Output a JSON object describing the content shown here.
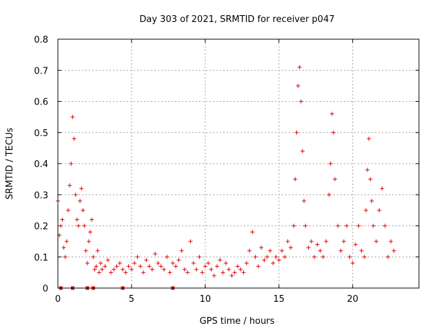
{
  "chart_data": {
    "type": "scatter",
    "title": "Day 303 of 2021, SRMTID for receiver p047",
    "xlabel": "GPS time / hours",
    "ylabel": "SRMTID / TECUs",
    "xlim": [
      0,
      24.5
    ],
    "ylim": [
      0,
      0.8
    ],
    "xticks": [
      0,
      5,
      10,
      15,
      20
    ],
    "xtick_labels": [
      "0",
      "5",
      "10",
      "15",
      "20"
    ],
    "yticks": [
      0,
      0.1,
      0.2,
      0.3,
      0.4,
      0.5,
      0.6,
      0.7,
      0.8
    ],
    "ytick_labels": [
      "0",
      "0.1",
      "0.2",
      "0.3",
      "0.4",
      "0.5",
      "0.6",
      "0.7",
      "0.8"
    ],
    "grid": true,
    "marker": "+",
    "color": "#e00000",
    "gap_markers_x": [
      0.2,
      1.0,
      2.0,
      2.4,
      4.4,
      7.8
    ],
    "series": [
      {
        "name": "SRMTID",
        "x": [
          0.0,
          0.1,
          0.2,
          0.3,
          0.4,
          0.5,
          0.6,
          0.7,
          0.8,
          0.9,
          1.0,
          1.1,
          1.2,
          1.3,
          1.4,
          1.5,
          1.6,
          1.7,
          1.8,
          1.9,
          2.0,
          2.1,
          2.2,
          2.3,
          2.4,
          2.5,
          2.6,
          2.7,
          2.8,
          2.9,
          3.0,
          3.2,
          3.4,
          3.6,
          3.8,
          4.0,
          4.2,
          4.4,
          4.6,
          4.8,
          5.0,
          5.2,
          5.4,
          5.6,
          5.8,
          6.0,
          6.2,
          6.4,
          6.6,
          6.8,
          7.0,
          7.2,
          7.4,
          7.6,
          7.8,
          8.0,
          8.2,
          8.4,
          8.6,
          8.8,
          9.0,
          9.2,
          9.4,
          9.6,
          9.8,
          10.0,
          10.2,
          10.4,
          10.6,
          10.8,
          11.0,
          11.2,
          11.4,
          11.6,
          11.8,
          12.0,
          12.2,
          12.4,
          12.6,
          12.8,
          13.0,
          13.2,
          13.4,
          13.6,
          13.8,
          14.0,
          14.2,
          14.4,
          14.6,
          14.8,
          15.0,
          15.2,
          15.4,
          15.6,
          15.8,
          16.0,
          16.1,
          16.2,
          16.3,
          16.4,
          16.5,
          16.6,
          16.7,
          16.8,
          17.0,
          17.2,
          17.4,
          17.6,
          17.8,
          18.0,
          18.2,
          18.4,
          18.5,
          18.6,
          18.7,
          18.8,
          19.0,
          19.2,
          19.4,
          19.6,
          19.8,
          20.0,
          20.2,
          20.4,
          20.6,
          20.8,
          20.9,
          21.0,
          21.1,
          21.2,
          21.3,
          21.4,
          21.6,
          21.8,
          22.0,
          22.2,
          22.4,
          22.6,
          22.8
        ],
        "y": [
          0.28,
          0.17,
          0.2,
          0.22,
          0.13,
          0.1,
          0.15,
          0.25,
          0.33,
          0.4,
          0.55,
          0.48,
          0.3,
          0.22,
          0.2,
          0.28,
          0.32,
          0.25,
          0.2,
          0.12,
          0.08,
          0.15,
          0.18,
          0.22,
          0.1,
          0.06,
          0.07,
          0.12,
          0.05,
          0.08,
          0.06,
          0.07,
          0.09,
          0.05,
          0.06,
          0.07,
          0.08,
          0.06,
          0.05,
          0.07,
          0.06,
          0.08,
          0.1,
          0.07,
          0.05,
          0.09,
          0.07,
          0.06,
          0.11,
          0.08,
          0.07,
          0.06,
          0.1,
          0.05,
          0.08,
          0.07,
          0.09,
          0.12,
          0.06,
          0.05,
          0.15,
          0.08,
          0.06,
          0.1,
          0.05,
          0.07,
          0.08,
          0.06,
          0.04,
          0.07,
          0.09,
          0.05,
          0.08,
          0.06,
          0.04,
          0.05,
          0.07,
          0.06,
          0.05,
          0.08,
          0.12,
          0.18,
          0.1,
          0.07,
          0.13,
          0.09,
          0.1,
          0.12,
          0.08,
          0.1,
          0.09,
          0.12,
          0.1,
          0.15,
          0.13,
          0.2,
          0.35,
          0.5,
          0.65,
          0.71,
          0.6,
          0.44,
          0.28,
          0.2,
          0.13,
          0.15,
          0.1,
          0.14,
          0.12,
          0.1,
          0.15,
          0.3,
          0.4,
          0.56,
          0.5,
          0.35,
          0.2,
          0.12,
          0.15,
          0.2,
          0.1,
          0.08,
          0.14,
          0.2,
          0.12,
          0.1,
          0.25,
          0.38,
          0.48,
          0.35,
          0.28,
          0.2,
          0.15,
          0.25,
          0.32,
          0.2,
          0.1,
          0.15,
          0.12
        ]
      }
    ]
  }
}
